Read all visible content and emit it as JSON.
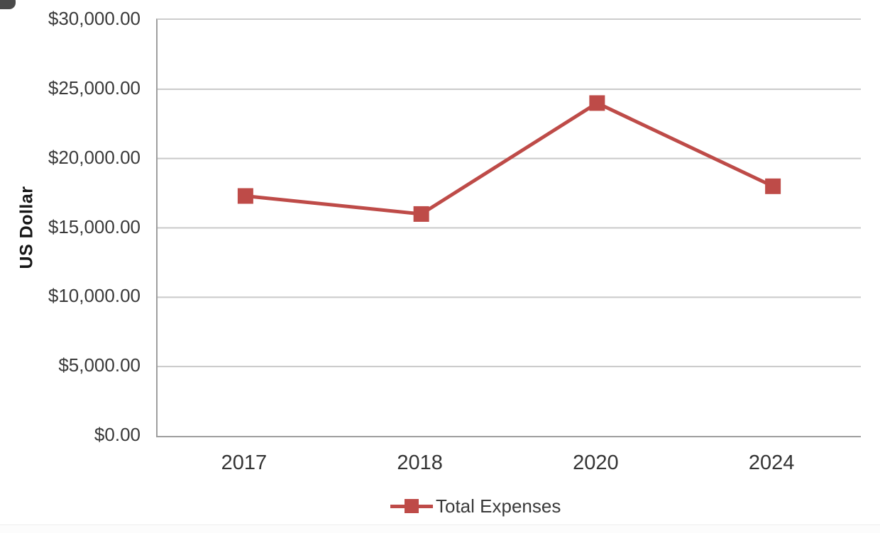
{
  "colors": {
    "series_red": "#BE4B48",
    "gridline": "#c9c9c9",
    "axis_line": "#9e9e9e",
    "tick_text": "#3a3a3a",
    "background": "#ffffff"
  },
  "chart_data": {
    "type": "line",
    "title": "",
    "xlabel": "",
    "ylabel": "US Dollar",
    "categories": [
      "2017",
      "2018",
      "2020",
      "2024"
    ],
    "series": [
      {
        "name": "Total Expenses",
        "values": [
          17300,
          16000,
          24000,
          18000
        ],
        "color": "#BE4B48",
        "marker": "square"
      }
    ],
    "ylim": [
      0,
      30000
    ],
    "y_tick_step": 5000,
    "y_ticks": [
      {
        "value": 30000,
        "label": "$30,000.00"
      },
      {
        "value": 25000,
        "label": "$25,000.00"
      },
      {
        "value": 20000,
        "label": "$20,000.00"
      },
      {
        "value": 15000,
        "label": "$15,000.00"
      },
      {
        "value": 10000,
        "label": "$10,000.00"
      },
      {
        "value": 5000,
        "label": "$5,000.00"
      },
      {
        "value": 0,
        "label": "$0.00"
      }
    ],
    "grid": true,
    "legend_position": "bottom"
  }
}
